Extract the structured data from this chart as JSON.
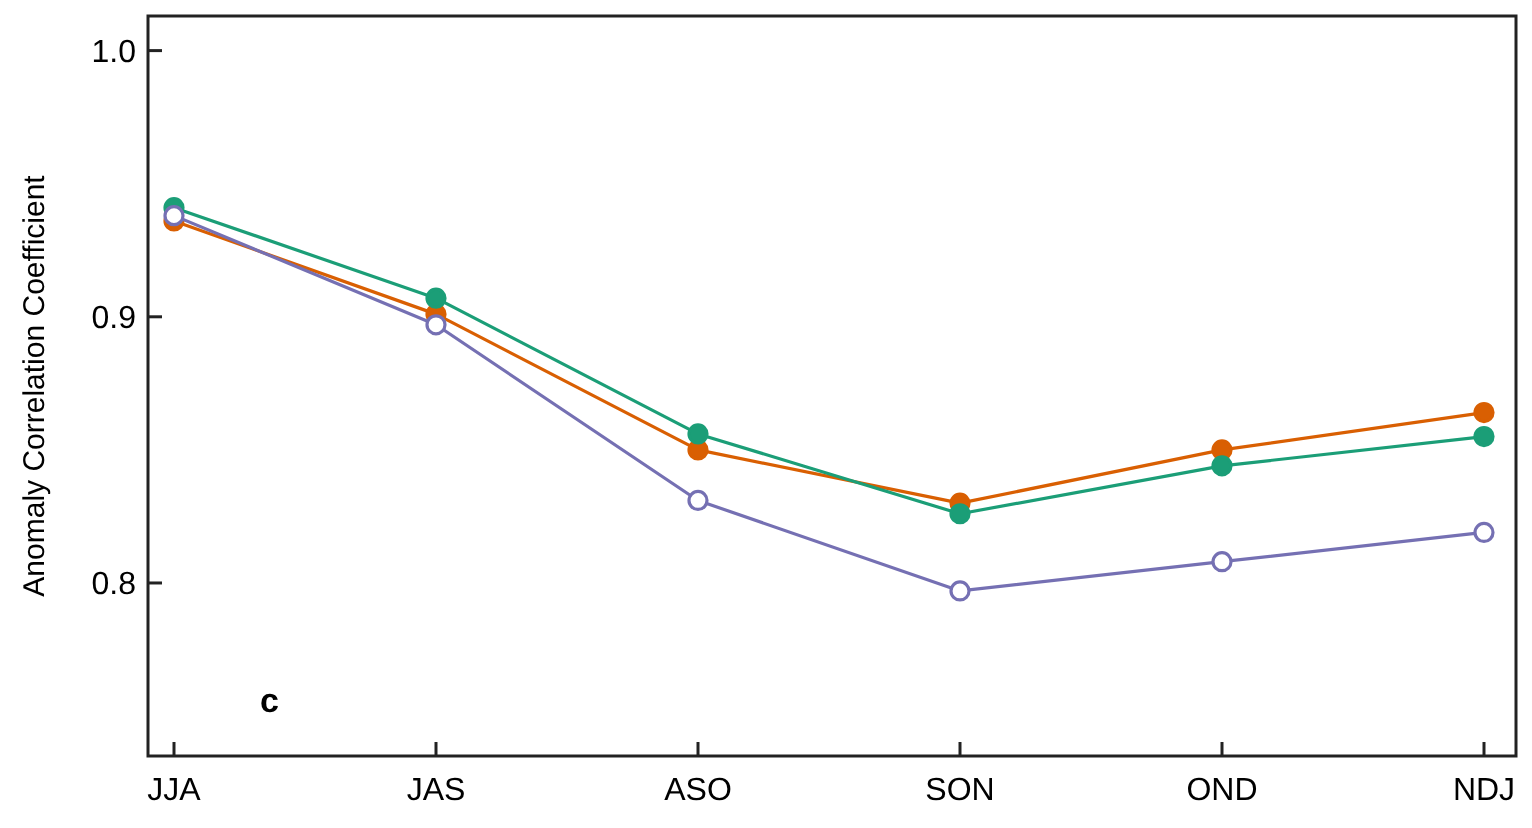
{
  "chart_data": {
    "type": "line",
    "ylabel": "Anomaly Correlation Coefficient",
    "categories": [
      "JJA",
      "JAS",
      "ASO",
      "SON",
      "OND",
      "NDJ"
    ],
    "series": [
      {
        "color": "#d95f02",
        "values": [
          0.936,
          0.901,
          0.85,
          0.83,
          0.85,
          0.864
        ]
      },
      {
        "color": "#1b9e77",
        "values": [
          0.941,
          0.907,
          0.856,
          0.826,
          0.844,
          0.855
        ]
      },
      {
        "color": "#7570b3",
        "values": [
          0.938,
          0.897,
          0.831,
          0.797,
          0.808,
          0.819
        ]
      }
    ],
    "ylim": [
      0.735,
      1.013
    ],
    "yticks": [
      {
        "value": 0.8,
        "label": "0.8"
      },
      {
        "value": 0.9,
        "label": "0.9"
      },
      {
        "value": 1.0,
        "label": "1.0"
      }
    ],
    "marker": "circle",
    "annotations": [
      "c"
    ]
  }
}
